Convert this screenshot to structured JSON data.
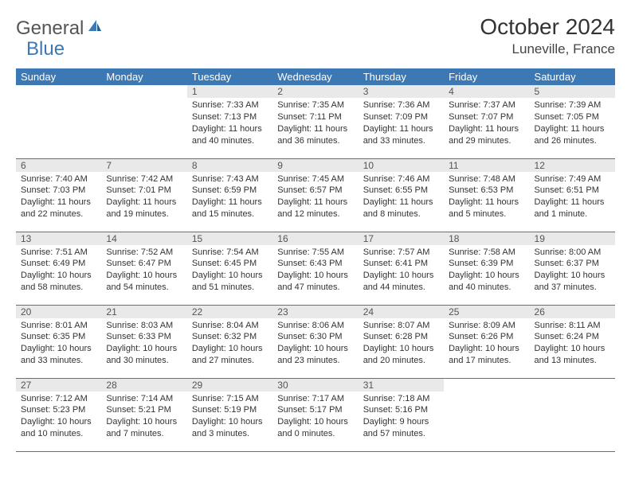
{
  "brand": {
    "text_a": "General",
    "text_b": "Blue"
  },
  "title": "October 2024",
  "location": "Luneville, France",
  "colors": {
    "header_bg": "#3c79b4",
    "header_fg": "#ffffff",
    "daynum_bg": "#e9e9e9",
    "rule": "#3c79b4"
  },
  "weekdays": [
    "Sunday",
    "Monday",
    "Tuesday",
    "Wednesday",
    "Thursday",
    "Friday",
    "Saturday"
  ],
  "weeks": [
    [
      null,
      null,
      {
        "n": "1",
        "sr": "7:33 AM",
        "ss": "7:13 PM",
        "dl": "11 hours and 40 minutes."
      },
      {
        "n": "2",
        "sr": "7:35 AM",
        "ss": "7:11 PM",
        "dl": "11 hours and 36 minutes."
      },
      {
        "n": "3",
        "sr": "7:36 AM",
        "ss": "7:09 PM",
        "dl": "11 hours and 33 minutes."
      },
      {
        "n": "4",
        "sr": "7:37 AM",
        "ss": "7:07 PM",
        "dl": "11 hours and 29 minutes."
      },
      {
        "n": "5",
        "sr": "7:39 AM",
        "ss": "7:05 PM",
        "dl": "11 hours and 26 minutes."
      }
    ],
    [
      {
        "n": "6",
        "sr": "7:40 AM",
        "ss": "7:03 PM",
        "dl": "11 hours and 22 minutes."
      },
      {
        "n": "7",
        "sr": "7:42 AM",
        "ss": "7:01 PM",
        "dl": "11 hours and 19 minutes."
      },
      {
        "n": "8",
        "sr": "7:43 AM",
        "ss": "6:59 PM",
        "dl": "11 hours and 15 minutes."
      },
      {
        "n": "9",
        "sr": "7:45 AM",
        "ss": "6:57 PM",
        "dl": "11 hours and 12 minutes."
      },
      {
        "n": "10",
        "sr": "7:46 AM",
        "ss": "6:55 PM",
        "dl": "11 hours and 8 minutes."
      },
      {
        "n": "11",
        "sr": "7:48 AM",
        "ss": "6:53 PM",
        "dl": "11 hours and 5 minutes."
      },
      {
        "n": "12",
        "sr": "7:49 AM",
        "ss": "6:51 PM",
        "dl": "11 hours and 1 minute."
      }
    ],
    [
      {
        "n": "13",
        "sr": "7:51 AM",
        "ss": "6:49 PM",
        "dl": "10 hours and 58 minutes."
      },
      {
        "n": "14",
        "sr": "7:52 AM",
        "ss": "6:47 PM",
        "dl": "10 hours and 54 minutes."
      },
      {
        "n": "15",
        "sr": "7:54 AM",
        "ss": "6:45 PM",
        "dl": "10 hours and 51 minutes."
      },
      {
        "n": "16",
        "sr": "7:55 AM",
        "ss": "6:43 PM",
        "dl": "10 hours and 47 minutes."
      },
      {
        "n": "17",
        "sr": "7:57 AM",
        "ss": "6:41 PM",
        "dl": "10 hours and 44 minutes."
      },
      {
        "n": "18",
        "sr": "7:58 AM",
        "ss": "6:39 PM",
        "dl": "10 hours and 40 minutes."
      },
      {
        "n": "19",
        "sr": "8:00 AM",
        "ss": "6:37 PM",
        "dl": "10 hours and 37 minutes."
      }
    ],
    [
      {
        "n": "20",
        "sr": "8:01 AM",
        "ss": "6:35 PM",
        "dl": "10 hours and 33 minutes."
      },
      {
        "n": "21",
        "sr": "8:03 AM",
        "ss": "6:33 PM",
        "dl": "10 hours and 30 minutes."
      },
      {
        "n": "22",
        "sr": "8:04 AM",
        "ss": "6:32 PM",
        "dl": "10 hours and 27 minutes."
      },
      {
        "n": "23",
        "sr": "8:06 AM",
        "ss": "6:30 PM",
        "dl": "10 hours and 23 minutes."
      },
      {
        "n": "24",
        "sr": "8:07 AM",
        "ss": "6:28 PM",
        "dl": "10 hours and 20 minutes."
      },
      {
        "n": "25",
        "sr": "8:09 AM",
        "ss": "6:26 PM",
        "dl": "10 hours and 17 minutes."
      },
      {
        "n": "26",
        "sr": "8:11 AM",
        "ss": "6:24 PM",
        "dl": "10 hours and 13 minutes."
      }
    ],
    [
      {
        "n": "27",
        "sr": "7:12 AM",
        "ss": "5:23 PM",
        "dl": "10 hours and 10 minutes."
      },
      {
        "n": "28",
        "sr": "7:14 AM",
        "ss": "5:21 PM",
        "dl": "10 hours and 7 minutes."
      },
      {
        "n": "29",
        "sr": "7:15 AM",
        "ss": "5:19 PM",
        "dl": "10 hours and 3 minutes."
      },
      {
        "n": "30",
        "sr": "7:17 AM",
        "ss": "5:17 PM",
        "dl": "10 hours and 0 minutes."
      },
      {
        "n": "31",
        "sr": "7:18 AM",
        "ss": "5:16 PM",
        "dl": "9 hours and 57 minutes."
      },
      null,
      null
    ]
  ],
  "labels": {
    "sunrise": "Sunrise:",
    "sunset": "Sunset:",
    "daylight": "Daylight:"
  }
}
